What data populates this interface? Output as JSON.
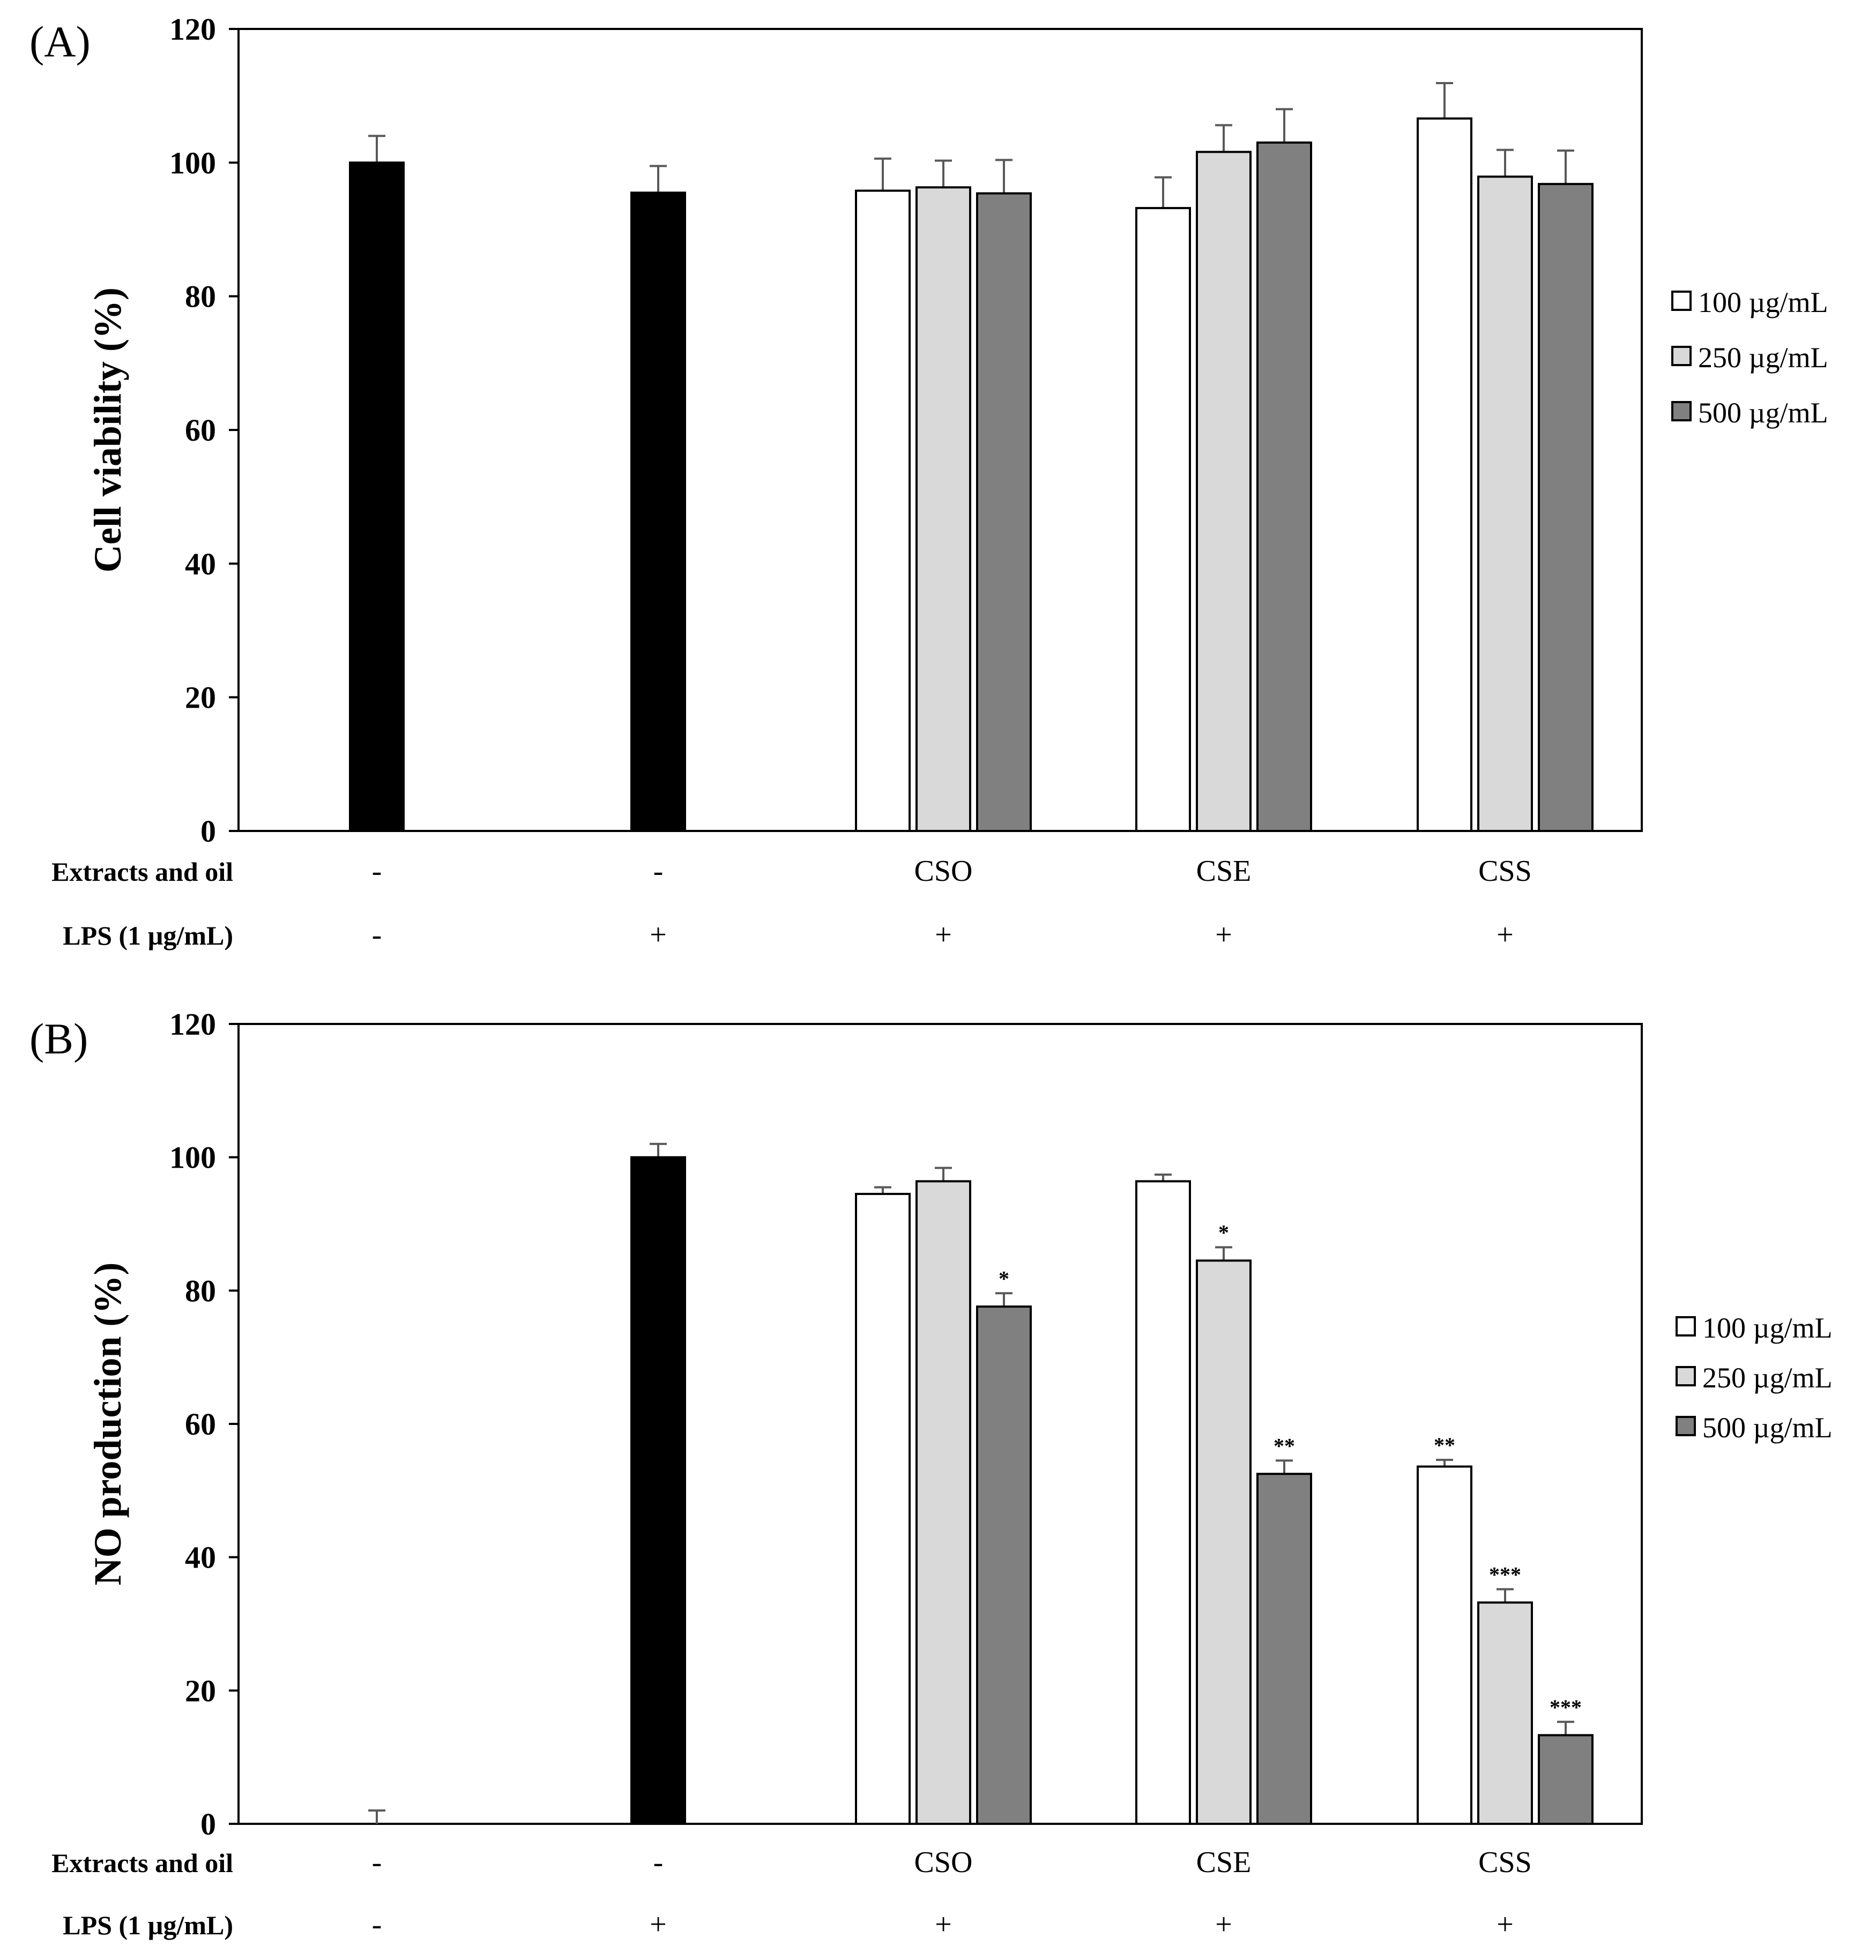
{
  "colors": {
    "control": "#000000",
    "100 µg/mL": "#ffffff",
    "250 µg/mL": "#d9d9d9",
    "500 µg/mL": "#808080",
    "errorbar": "#595959"
  },
  "legend": [
    "100 µg/mL",
    "250 µg/mL",
    "500 µg/mL"
  ],
  "row_labels": {
    "extracts": "Extracts and oil",
    "lps": "LPS (1 µg/mL)"
  },
  "chart_data": [
    {
      "type": "bar",
      "panel_label": "(A)",
      "ylabel": "Cell viability (%)",
      "ylim": [
        0,
        120
      ],
      "yticks": [
        0,
        20,
        40,
        60,
        80,
        100,
        120
      ],
      "groups": [
        {
          "extracts": "-",
          "lps": "-",
          "bars": [
            {
              "series": "control",
              "value": 100,
              "err": 4
            }
          ]
        },
        {
          "extracts": "-",
          "lps": "+",
          "bars": [
            {
              "series": "control",
              "value": 95.5,
              "err": 4
            }
          ]
        },
        {
          "extracts": "CSO",
          "lps": "+",
          "bars": [
            {
              "series": "100 µg/mL",
              "value": 95.8,
              "err": 4.8
            },
            {
              "series": "250 µg/mL",
              "value": 96.3,
              "err": 4
            },
            {
              "series": "500 µg/mL",
              "value": 95.4,
              "err": 5
            }
          ]
        },
        {
          "extracts": "CSE",
          "lps": "+",
          "bars": [
            {
              "series": "100 µg/mL",
              "value": 93.2,
              "err": 4.6
            },
            {
              "series": "250 µg/mL",
              "value": 101.6,
              "err": 4
            },
            {
              "series": "500 µg/mL",
              "value": 103,
              "err": 5
            }
          ]
        },
        {
          "extracts": "CSS",
          "lps": "+",
          "bars": [
            {
              "series": "100 µg/mL",
              "value": 106.6,
              "err": 5.3
            },
            {
              "series": "250 µg/mL",
              "value": 97.9,
              "err": 4
            },
            {
              "series": "500 µg/mL",
              "value": 96.8,
              "err": 5
            }
          ]
        }
      ]
    },
    {
      "type": "bar",
      "panel_label": "(B)",
      "ylabel": "NO production (%)",
      "ylim": [
        0,
        120
      ],
      "yticks": [
        0,
        20,
        40,
        60,
        80,
        100,
        120
      ],
      "groups": [
        {
          "extracts": "-",
          "lps": "-",
          "bars": [
            {
              "series": "control",
              "value": 0,
              "err": 2
            }
          ]
        },
        {
          "extracts": "-",
          "lps": "+",
          "bars": [
            {
              "series": "control",
              "value": 100,
              "err": 2
            }
          ]
        },
        {
          "extracts": "CSO",
          "lps": "+",
          "bars": [
            {
              "series": "100 µg/mL",
              "value": 94.5,
              "err": 1
            },
            {
              "series": "250 µg/mL",
              "value": 96.4,
              "err": 2
            },
            {
              "series": "500 µg/mL",
              "value": 77.6,
              "err": 2,
              "sig": "*"
            }
          ]
        },
        {
          "extracts": "CSE",
          "lps": "+",
          "bars": [
            {
              "series": "100 µg/mL",
              "value": 96.4,
              "err": 1
            },
            {
              "series": "250 µg/mL",
              "value": 84.5,
              "err": 2,
              "sig": "*"
            },
            {
              "series": "500 µg/mL",
              "value": 52.5,
              "err": 2,
              "sig": "**"
            }
          ]
        },
        {
          "extracts": "CSS",
          "lps": "+",
          "bars": [
            {
              "series": "100 µg/mL",
              "value": 53.6,
              "err": 1,
              "sig": "**"
            },
            {
              "series": "250 µg/mL",
              "value": 33.2,
              "err": 2,
              "sig": "***"
            },
            {
              "series": "500 µg/mL",
              "value": 13.3,
              "err": 2,
              "sig": "***"
            }
          ]
        }
      ]
    }
  ]
}
